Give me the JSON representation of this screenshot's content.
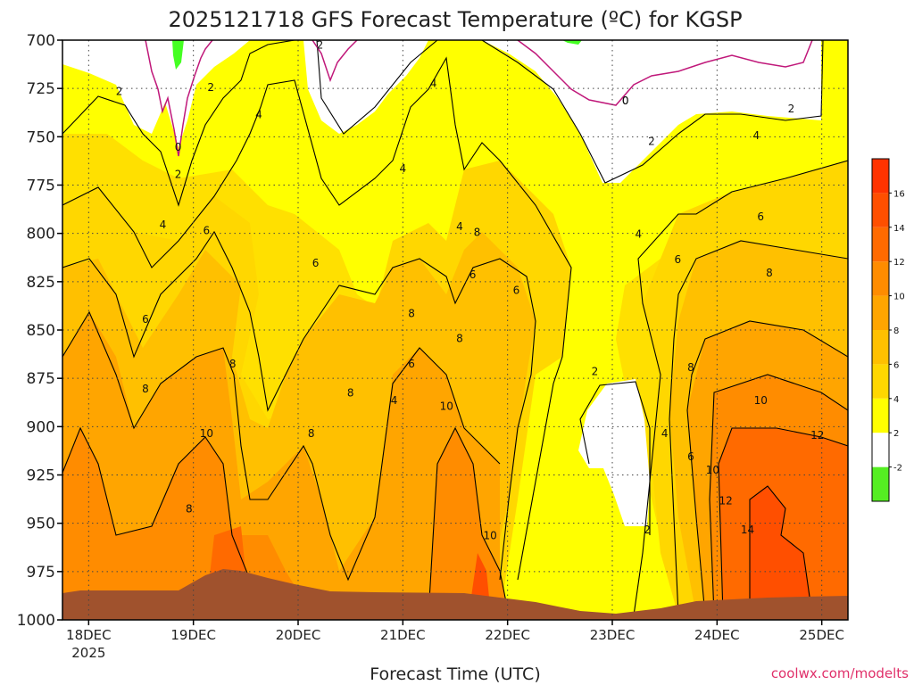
{
  "chart_data": {
    "type": "heatmap",
    "title": "2025121718 GFS Forecast Temperature (ºC) for KGSP",
    "xlabel": "Forecast Time (UTC)",
    "ylabel": "",
    "source": "coolwx.com/modelts",
    "x_ticks": [
      "18DEC",
      "19DEC",
      "20DEC",
      "21DEC",
      "22DEC",
      "23DEC",
      "24DEC",
      "25DEC"
    ],
    "x_sub": "2025",
    "x_hours": [
      0,
      24,
      48,
      72,
      96,
      120,
      144,
      168
    ],
    "x_range_hours": [
      -6,
      174
    ],
    "y_ticks": [
      700,
      725,
      750,
      775,
      800,
      825,
      850,
      875,
      900,
      925,
      950,
      975,
      1000
    ],
    "ylim": [
      1000,
      700
    ],
    "legend": {
      "levels": [
        -2,
        2,
        4,
        6,
        8,
        10,
        12,
        14,
        16
      ],
      "colors": [
        "#55ee22",
        "#ffffff",
        "#ffff00",
        "#ffd700",
        "#ffc000",
        "#ffa500",
        "#ff8c00",
        "#ff6a00",
        "#ff4f00",
        "#ff3300"
      ]
    },
    "freezing_line_label": "0",
    "contour_labels": [
      {
        "text": "2",
        "h": 7,
        "p": 726
      },
      {
        "text": "2",
        "h": 28,
        "p": 724
      },
      {
        "text": "2",
        "h": 53,
        "p": 702
      },
      {
        "text": "0",
        "h": 20.5,
        "p": 755
      },
      {
        "text": "2",
        "h": 20.5,
        "p": 769
      },
      {
        "text": "4",
        "h": 17,
        "p": 795
      },
      {
        "text": "6",
        "h": 27,
        "p": 798
      },
      {
        "text": "4",
        "h": 39,
        "p": 738
      },
      {
        "text": "4",
        "h": 79,
        "p": 722
      },
      {
        "text": "4",
        "h": 72,
        "p": 766
      },
      {
        "text": "6",
        "h": 13,
        "p": 844
      },
      {
        "text": "8",
        "h": 13,
        "p": 880
      },
      {
        "text": "6",
        "h": 52,
        "p": 815
      },
      {
        "text": "8",
        "h": 33,
        "p": 867
      },
      {
        "text": "10",
        "h": 27,
        "p": 903
      },
      {
        "text": "8",
        "h": 23,
        "p": 942
      },
      {
        "text": "8",
        "h": 51,
        "p": 903
      },
      {
        "text": "8",
        "h": 60,
        "p": 882
      },
      {
        "text": "6",
        "h": 74,
        "p": 867
      },
      {
        "text": "4",
        "h": 70,
        "p": 886
      },
      {
        "text": "8",
        "h": 74,
        "p": 841
      },
      {
        "text": "8",
        "h": 89,
        "p": 799
      },
      {
        "text": "6",
        "h": 88,
        "p": 821
      },
      {
        "text": "8",
        "h": 85,
        "p": 854
      },
      {
        "text": "4",
        "h": 85,
        "p": 796
      },
      {
        "text": "10",
        "h": 82,
        "p": 889
      },
      {
        "text": "6",
        "h": 98,
        "p": 829
      },
      {
        "text": "10",
        "h": 92,
        "p": 956
      },
      {
        "text": "2",
        "h": 116,
        "p": 871
      },
      {
        "text": "0",
        "h": 123,
        "p": 731
      },
      {
        "text": "2",
        "h": 129,
        "p": 752
      },
      {
        "text": "4",
        "h": 126,
        "p": 800
      },
      {
        "text": "4",
        "h": 132,
        "p": 903
      },
      {
        "text": "2",
        "h": 128,
        "p": 953
      },
      {
        "text": "6",
        "h": 135,
        "p": 813
      },
      {
        "text": "8",
        "h": 138,
        "p": 869
      },
      {
        "text": "6",
        "h": 138,
        "p": 915
      },
      {
        "text": "10",
        "h": 143,
        "p": 922
      },
      {
        "text": "12",
        "h": 146,
        "p": 938
      },
      {
        "text": "14",
        "h": 151,
        "p": 953
      },
      {
        "text": "10",
        "h": 154,
        "p": 886
      },
      {
        "text": "8",
        "h": 156,
        "p": 820
      },
      {
        "text": "6",
        "h": 154,
        "p": 791
      },
      {
        "text": "4",
        "h": 153,
        "p": 749
      },
      {
        "text": "2",
        "h": 161,
        "p": 735
      },
      {
        "text": "12",
        "h": 167,
        "p": 904
      }
    ]
  }
}
